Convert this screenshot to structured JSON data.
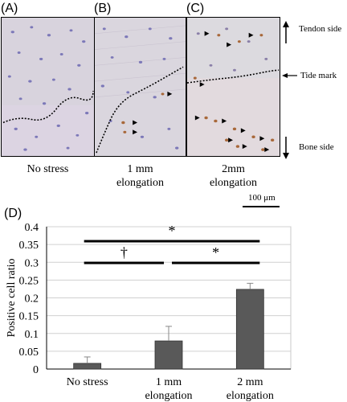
{
  "figure": {
    "panels": [
      {
        "label": "(A)",
        "caption": [
          "No stress"
        ]
      },
      {
        "label": "(B)",
        "caption": [
          "1 mm",
          "elongation"
        ]
      },
      {
        "label": "(C)",
        "caption": [
          "2mm",
          "elongation"
        ]
      }
    ],
    "side_labels": {
      "tendon": "Tendon side",
      "tide": "Tide mark",
      "bone": "Bone side"
    },
    "scale_bar": "100 μm",
    "chart_panel_label": "(D)"
  },
  "chart_data": {
    "type": "bar",
    "categories": [
      [
        "No stress"
      ],
      [
        "1 mm",
        "elongation"
      ],
      [
        "2 mm",
        "elongation"
      ]
    ],
    "values": [
      0.016,
      0.079,
      0.224
    ],
    "errors": [
      0.018,
      0.041,
      0.017
    ],
    "ylabel": "Positive cell ratio",
    "ylim": [
      0,
      0.4
    ],
    "yticks": [
      "0",
      "0.05",
      "0.1",
      "0.15",
      "0.2",
      "0.25",
      "0.3",
      "0.35",
      "0.4"
    ],
    "bar_color": "#595959",
    "grid": true,
    "significance": [
      {
        "from": 0,
        "to": 2,
        "symbol": "*"
      },
      {
        "from": 0,
        "to": 1,
        "symbol": "†"
      },
      {
        "from": 1,
        "to": 2,
        "symbol": "*"
      }
    ]
  }
}
